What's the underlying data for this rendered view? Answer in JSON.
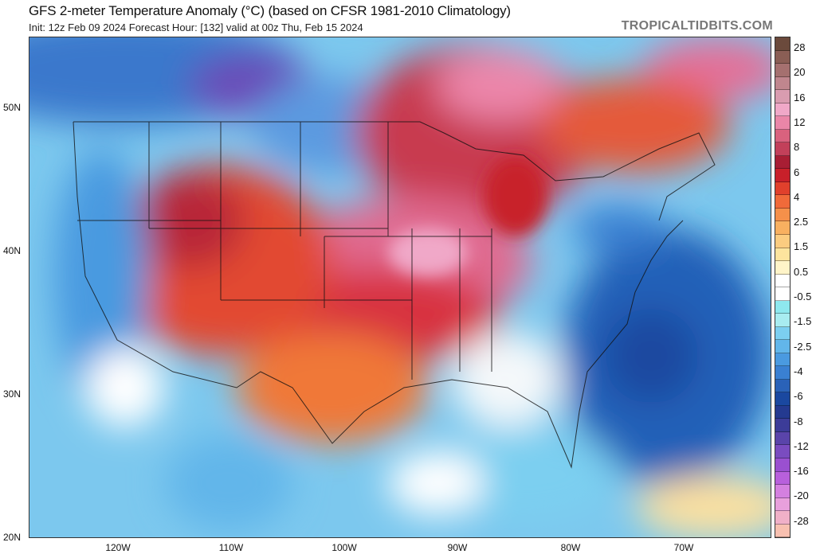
{
  "header": {
    "title": "GFS 2-meter Temperature Anomaly (°C) (based on CFSR 1981-2010 Climatology)",
    "subtitle": "Init: 12z Feb 09 2024   Forecast Hour: [132]   valid at 00z Thu, Feb 15 2024",
    "brand": "TROPICALTIDBITS.COM"
  },
  "map": {
    "lat_labels": [
      "50N",
      "40N",
      "30N",
      "20N"
    ],
    "lon_labels": [
      "120W",
      "110W",
      "100W",
      "90W",
      "80W",
      "70W"
    ]
  },
  "colorbar": {
    "labels": [
      "28",
      "20",
      "16",
      "12",
      "8",
      "6",
      "4",
      "2.5",
      "1.5",
      "0.5",
      "-0.5",
      "-1.5",
      "-2.5",
      "-4",
      "-6",
      "-8",
      "-12",
      "-16",
      "-20",
      "-28"
    ],
    "colors": [
      "#6b4a3c",
      "#8a5e55",
      "#a5706f",
      "#c0868e",
      "#d99cb0",
      "#f0a8c8",
      "#ea86a8",
      "#d9627e",
      "#c2405a",
      "#a81e34",
      "#c8202a",
      "#e0402c",
      "#f06a3a",
      "#f5904a",
      "#f8b060",
      "#fbcc80",
      "#fde49e",
      "#fff4c8",
      "#ffffff",
      "#ffffff",
      "#8ee8ee",
      "#a8ecf0",
      "#7ccff0",
      "#62b6ea",
      "#4a9ae0",
      "#3a80d2",
      "#2a62b8",
      "#1a48a0",
      "#243a90",
      "#3c3c98",
      "#5a44aa",
      "#7a4cc0",
      "#9a50d0",
      "#b860dc",
      "#d480e0",
      "#e8a0dc",
      "#f0b0c8",
      "#f8c0b0"
    ]
  }
}
